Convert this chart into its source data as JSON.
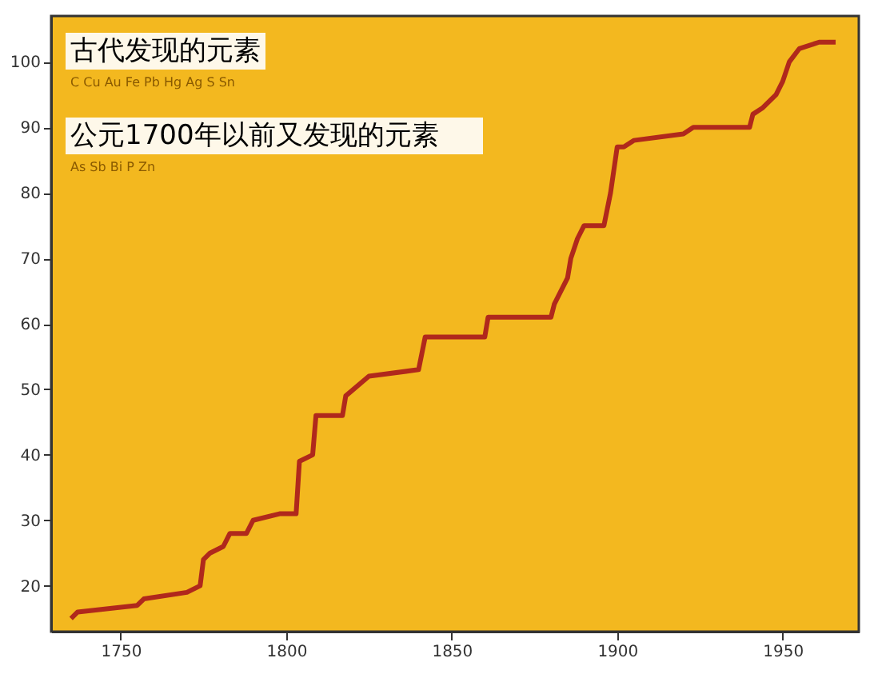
{
  "chart_data": {
    "type": "line",
    "x": [
      1735,
      1737,
      1755,
      1757,
      1770,
      1774,
      1775,
      1777,
      1781,
      1783,
      1788,
      1790,
      1798,
      1803,
      1804,
      1808,
      1809,
      1817,
      1818,
      1825,
      1840,
      1842,
      1860,
      1861,
      1880,
      1881,
      1885,
      1886,
      1888,
      1890,
      1896,
      1898,
      1900,
      1902,
      1905,
      1920,
      1923,
      1940,
      1941,
      1944,
      1948,
      1950,
      1952,
      1955,
      1961,
      1966
    ],
    "series": [
      {
        "color": "#b0281c",
        "values": [
          15,
          16,
          17,
          18,
          19,
          20,
          24,
          25,
          26,
          28,
          28,
          30,
          31,
          31,
          39,
          40,
          46,
          46,
          49,
          52,
          53,
          58,
          58,
          61,
          61,
          63,
          67,
          70,
          73,
          75,
          75,
          80,
          87,
          87,
          88,
          89,
          90,
          90,
          92,
          93,
          95,
          97,
          100,
          102,
          103,
          103
        ]
      }
    ],
    "xlim": [
      1729,
      1973
    ],
    "ylim": [
      13,
      107
    ],
    "xticks": [
      1750,
      1800,
      1850,
      1900,
      1950
    ],
    "yticks": [
      20,
      30,
      40,
      50,
      60,
      70,
      80,
      90,
      100
    ],
    "grid": false,
    "line_style": "solid",
    "annotations": [
      "古代发现的元素",
      "C Cu Au Fe Pb Hg Ag S Sn",
      "公元1700年以前又发现的元素",
      "As Sb Bi P Zn"
    ]
  }
}
